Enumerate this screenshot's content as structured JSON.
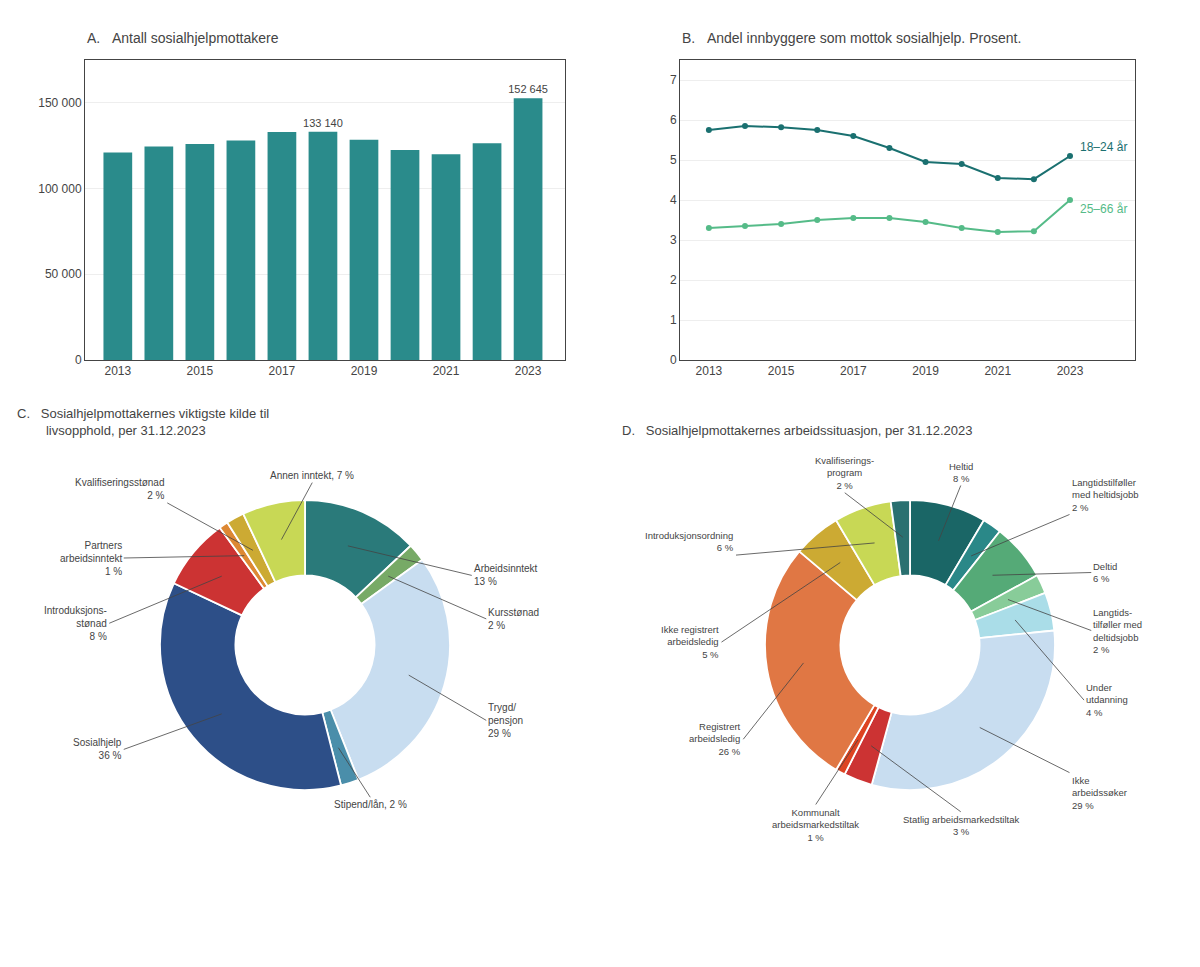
{
  "chart_data": [
    {
      "type": "bar",
      "title": "A.   Antall sosialhjelpmottakere",
      "x": [
        2013,
        2014,
        2015,
        2016,
        2017,
        2018,
        2019,
        2020,
        2021,
        2022,
        2023
      ],
      "values": [
        121000,
        124500,
        126000,
        128000,
        133000,
        133140,
        128500,
        122500,
        120000,
        126500,
        152645
      ],
      "value_labels": [
        null,
        null,
        null,
        null,
        null,
        "133 140",
        null,
        null,
        null,
        null,
        "152 645"
      ],
      "data_labels": true,
      "color": "#2a8b8b",
      "xlim": [
        2012.2,
        2023.9
      ],
      "xticks": [
        2013,
        2015,
        2017,
        2019,
        2021,
        2023
      ],
      "ylim": [
        0,
        175000
      ],
      "yticks": [
        0,
        {
          "value": 50000,
          "label": "50 000"
        },
        {
          "value": 100000,
          "label": "100 000"
        },
        {
          "value": 150000,
          "label": "150 000"
        }
      ],
      "grid": true
    },
    {
      "type": "line",
      "title": "B.   Andel innbyggere som mottok sosialhjelp. Prosent.",
      "x": [
        2013,
        2014,
        2015,
        2016,
        2017,
        2018,
        2019,
        2020,
        2021,
        2022,
        2023
      ],
      "series": [
        {
          "name": "18–24 år",
          "color": "#1a7070",
          "values": [
            5.75,
            5.85,
            5.82,
            5.75,
            5.6,
            5.3,
            4.95,
            4.9,
            4.55,
            4.52,
            5.1
          ]
        },
        {
          "name": "25–66 år",
          "color": "#55bb88",
          "values": [
            3.3,
            3.35,
            3.4,
            3.5,
            3.55,
            3.55,
            3.45,
            3.3,
            3.2,
            3.22,
            4.0
          ]
        }
      ],
      "marker": "circle",
      "xlim": [
        2012.2,
        2024.8
      ],
      "xticks": [
        2013,
        2015,
        2017,
        2019,
        2021,
        2023
      ],
      "ylim": [
        0,
        7.5
      ],
      "yticks": [
        0,
        1,
        2,
        3,
        4,
        5,
        6,
        7
      ],
      "grid": true
    },
    {
      "type": "donut",
      "title": "C.   Sosialhjelpmottakernes viktigste kilde til\n        livsopphold, per 31.12.2023",
      "categories": [
        "Arbeidsinntekt\n13 %",
        "Kursstønad\n2 %",
        "Trygd/\npensjon\n29 %",
        "Stipend/lån, 2 %",
        "Sosialhjelp\n36 %",
        "Introduksjons-\nstønad\n8 %",
        "Partners\narbeidsinntekt\n1 %",
        "Kvalifiseringsstønad\n2 %",
        "Annen inntekt, 7 %"
      ],
      "values": [
        13,
        2,
        29,
        2,
        36,
        8,
        1,
        2,
        7
      ],
      "colors": [
        "#2a7a7a",
        "#77aa66",
        "#c8ddf0",
        "#4a8eaa",
        "#2d4f88",
        "#cc3333",
        "#dd8833",
        "#ccaa33",
        "#c8d855"
      ]
    },
    {
      "type": "donut",
      "title": "D.   Sosialhjelpmottakernes arbeidssituasjon, per 31.12.2023",
      "categories": [
        "Heltid\n8 %",
        "Langtidstilføller\nmed heltidsjobb\n2 %",
        "Deltid\n6 %",
        "Langtids-\ntilføller med\ndeltidsjobb\n2 %",
        "Under\nutdanning\n4 %",
        "Ikke\narbeidssøker\n29 %",
        "Statlig arbeidsmarkedstiltak\n3 %",
        "Kommunalt\narbeidsmarkedstiltak\n1 %",
        "Registrert\narbeidsledig\n26 %",
        "Ikke registrert\narbeidsledig\n5 %",
        "Introduksjonsordning\n6 %",
        "Kvalifiserings-\nprogram\n2 %"
      ],
      "values": [
        8,
        2,
        6,
        2,
        4,
        29,
        3,
        1,
        26,
        5,
        6,
        2
      ],
      "colors": [
        "#1a6666",
        "#2a8888",
        "#55aa77",
        "#88cc99",
        "#aadde8",
        "#c8ddf0",
        "#cc3333",
        "#dd4422",
        "#e07744",
        "#ccaa33",
        "#c8d855",
        "#2a7070"
      ]
    }
  ]
}
